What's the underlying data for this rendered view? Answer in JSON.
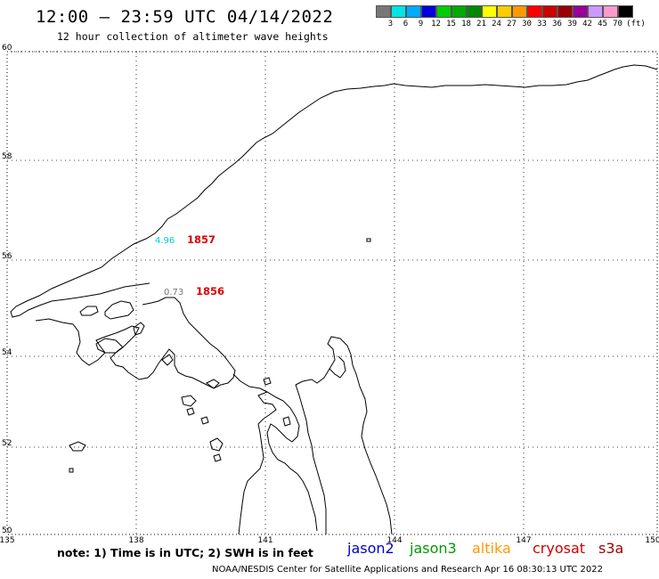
{
  "header": {
    "title": "12:00 – 23:59 UTC 04/14/2022",
    "subtitle": "12 hour collection of altimeter wave heights"
  },
  "colorscale": {
    "colors": [
      "#777777",
      "#00e5e5",
      "#00aaff",
      "#0000dd",
      "#00cc00",
      "#00aa00",
      "#008800",
      "#ffff00",
      "#ffcc00",
      "#ff9900",
      "#ff0000",
      "#cc0000",
      "#990000",
      "#990099",
      "#cc99ff",
      "#ff99cc",
      "#000000"
    ],
    "labels": [
      "3",
      "6",
      "9",
      "12",
      "15",
      "18",
      "21",
      "24",
      "27",
      "30",
      "33",
      "36",
      "39",
      "42",
      "45",
      "70",
      "(ft)"
    ]
  },
  "map": {
    "lat_labels": [
      "60",
      "58",
      "56",
      "54",
      "52",
      "50"
    ],
    "lon_labels": [
      "135",
      "138",
      "141",
      "144",
      "147",
      "150"
    ],
    "observations": [
      {
        "swh": "4.96",
        "swh_color": "#00cccc",
        "time": "1857",
        "time_color": "#dd0000"
      },
      {
        "swh": "0.73",
        "swh_color": "#777777",
        "time": "1856",
        "time_color": "#dd0000"
      }
    ]
  },
  "note": "note: 1) Time is in UTC; 2) SWH is in feet",
  "satellites": [
    {
      "name": "jason2",
      "color": "#0000cc"
    },
    {
      "name": "jason3",
      "color": "#009900"
    },
    {
      "name": "altika",
      "color": "#ff9900"
    },
    {
      "name": "cryosat",
      "color": "#cc0000"
    },
    {
      "name": "s3a",
      "color": "#990000"
    }
  ],
  "footer": "NOAA/NESDIS Center for Satellite Applications and Research   Apr 16 08:30:13 UTC 2022"
}
